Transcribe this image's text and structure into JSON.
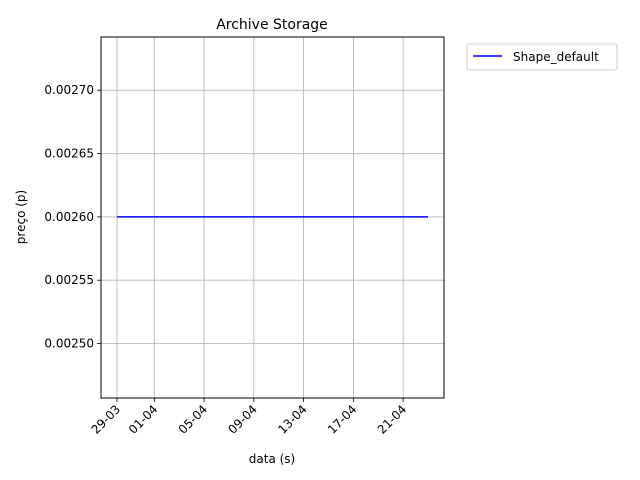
{
  "chart_data": {
    "type": "line",
    "title": "Archive Storage",
    "xlabel": "data (s)",
    "ylabel": "preço (p)",
    "x_ticks": [
      "29-03",
      "01-04",
      "05-04",
      "09-04",
      "13-04",
      "17-04",
      "21-04"
    ],
    "y_ticks": [
      "0.00250",
      "0.00255",
      "0.00260",
      "0.00265",
      "0.00270"
    ],
    "x_range": [
      "2023-03-29",
      "2023-04-23"
    ],
    "ylim": [
      0.002457,
      0.002742
    ],
    "grid": true,
    "legend_position": "outside-top-right",
    "series": [
      {
        "name": "Shape_default",
        "color": "#0000ff",
        "x": [
          "2023-03-29",
          "2023-04-23"
        ],
        "y": [
          0.0026,
          0.0026
        ]
      }
    ]
  }
}
